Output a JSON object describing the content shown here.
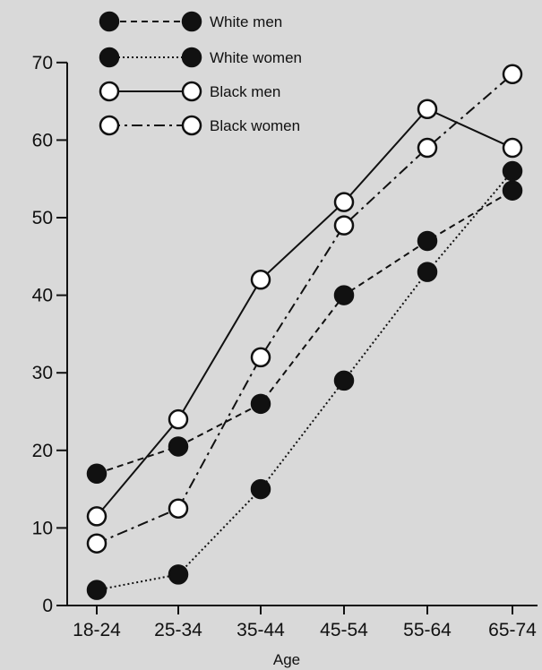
{
  "chart_data": {
    "type": "line",
    "xlabel": "Age",
    "ylabel": "",
    "categories": [
      "18-24",
      "25-34",
      "35-44",
      "45-54",
      "55-64",
      "65-74"
    ],
    "ylim": [
      0,
      70
    ],
    "yticks": [
      0,
      10,
      20,
      30,
      40,
      50,
      60,
      70
    ],
    "grid": false,
    "legend_position": "top-left",
    "series": [
      {
        "name": "White men",
        "values": [
          17,
          20.5,
          26,
          40,
          47,
          53.5
        ],
        "marker": "filled",
        "line_style": "dashed",
        "color": "#111111"
      },
      {
        "name": "White women",
        "values": [
          2,
          4,
          15,
          29,
          43,
          56
        ],
        "marker": "filled",
        "line_style": "dotted",
        "color": "#111111"
      },
      {
        "name": "Black men",
        "values": [
          11.5,
          24,
          42,
          52,
          64,
          59
        ],
        "marker": "open",
        "line_style": "solid",
        "color": "#111111"
      },
      {
        "name": "Black women",
        "values": [
          8,
          12.5,
          32,
          49,
          59,
          68.5
        ],
        "marker": "open",
        "line_style": "dashdot",
        "color": "#111111"
      }
    ]
  }
}
